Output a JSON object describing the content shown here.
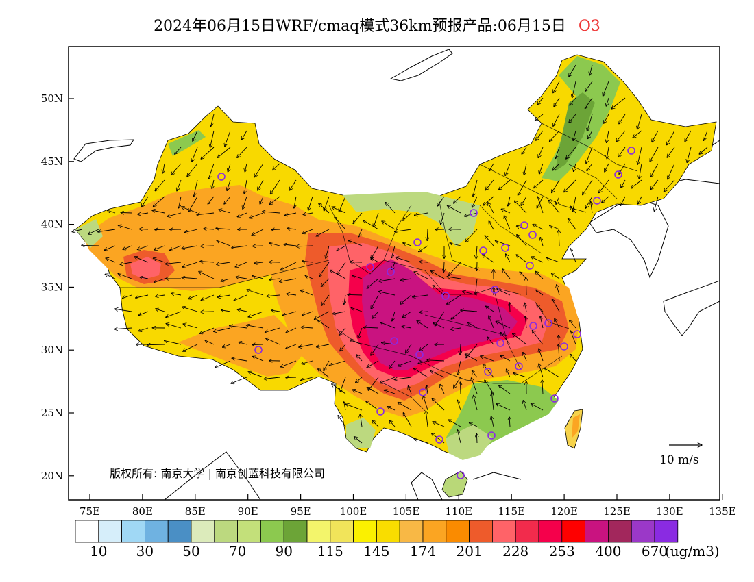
{
  "title": {
    "text": "2024年06月15日WRF/cmaq模式36km预报产品:06月15日",
    "pollutant": "O3"
  },
  "map": {
    "lat_labels": [
      "50N",
      "45N",
      "40N",
      "35N",
      "30N",
      "25N",
      "20N"
    ],
    "lon_labels": [
      "75E",
      "80E",
      "85E",
      "90E",
      "95E",
      "100E",
      "105E",
      "110E",
      "115E",
      "120E",
      "125E",
      "130E",
      "135E"
    ],
    "copyright": "版权所有: 南京大学 | 南京创蓝科技有限公司",
    "wind_scale_label": "10 m/s"
  },
  "legend": {
    "colors": [
      "#ffffff",
      "#d6eefa",
      "#a0d8f5",
      "#6fb2e1",
      "#4a8fc5",
      "#dcebbb",
      "#bcd97f",
      "#c3e07a",
      "#8cc94f",
      "#6ca437",
      "#f3f56b",
      "#f1e45a",
      "#fbf100",
      "#f9dd00",
      "#f8b845",
      "#fba522",
      "#fa8b00",
      "#ee5b2b",
      "#ff6368",
      "#f22b4c",
      "#f5004b",
      "#fe0000",
      "#c91380",
      "#a2275c",
      "#9b38c8",
      "#8a2be2"
    ],
    "labels": [
      "10",
      "30",
      "50",
      "70",
      "90",
      "115",
      "145",
      "174",
      "201",
      "228",
      "253",
      "400",
      "670"
    ],
    "unit": "(ug/m3)"
  }
}
